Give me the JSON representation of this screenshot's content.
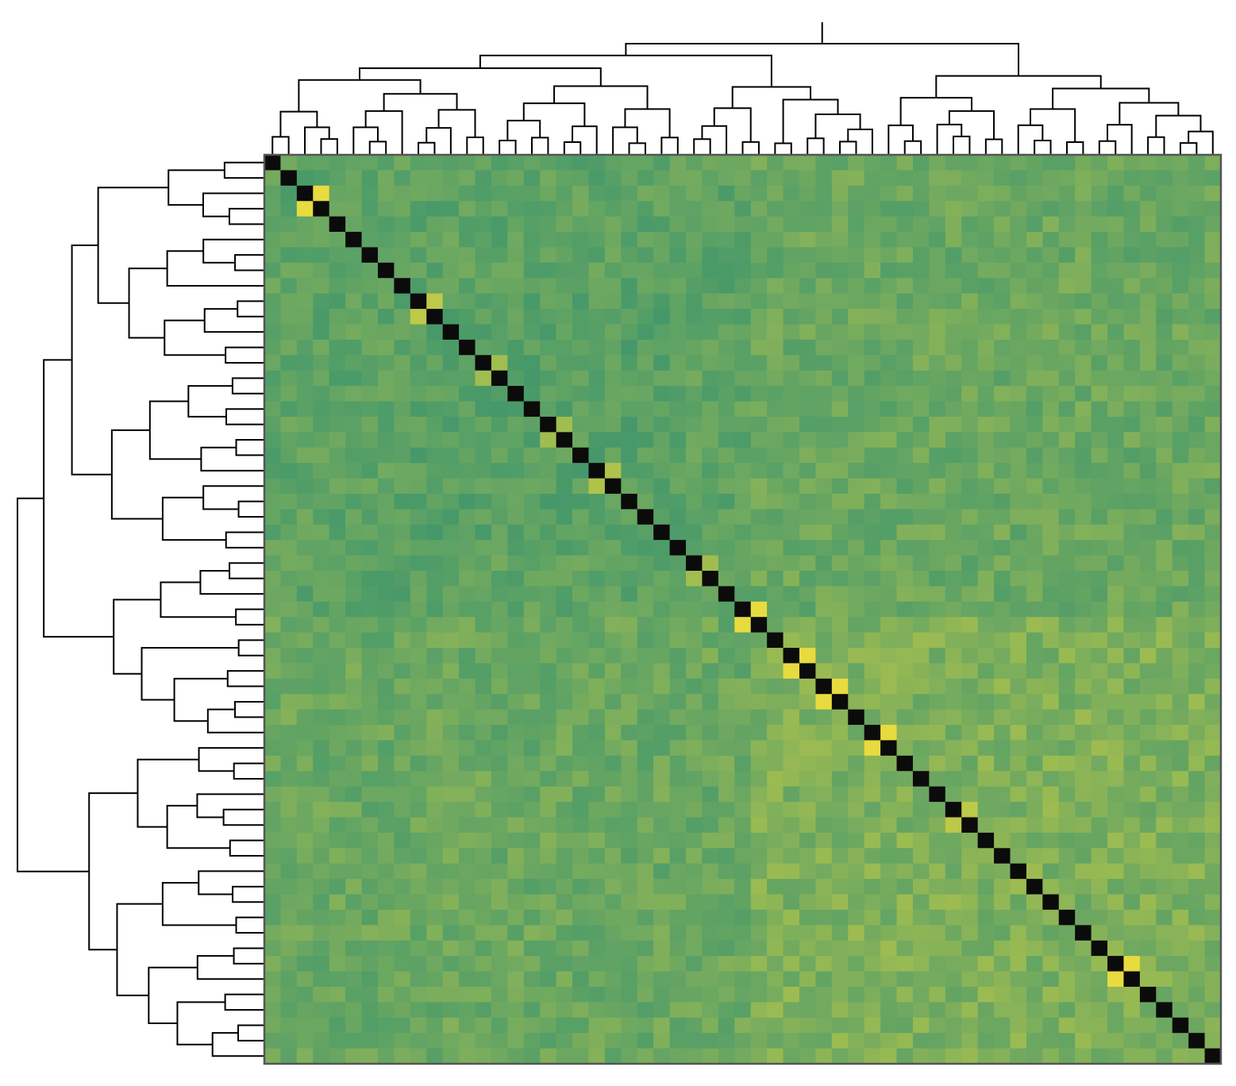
{
  "chart_data": {
    "type": "heatmap",
    "title": "",
    "xlabel": "",
    "ylabel": "",
    "n": 59,
    "colormap": "yellow-green-teal",
    "diagonal_color": "#0b0b0b",
    "frame_color": "#555555",
    "dendrogram_line_color": "#000000",
    "dendrograms": [
      "top",
      "left"
    ],
    "legend": "none",
    "grid": false,
    "value_range": [
      0,
      1
    ],
    "base_value": 0.5,
    "diagonal_value": 1.0,
    "highlighted_pairs": [
      {
        "a": 2,
        "b": 3,
        "value": 0.95
      },
      {
        "a": 9,
        "b": 10,
        "value": 0.8
      },
      {
        "a": 29,
        "b": 30,
        "value": 0.95
      },
      {
        "a": 32,
        "b": 33,
        "value": 0.95
      },
      {
        "a": 34,
        "b": 35,
        "value": 0.95
      },
      {
        "a": 37,
        "b": 38,
        "value": 0.95
      },
      {
        "a": 52,
        "b": 53,
        "value": 0.95
      },
      {
        "a": 20,
        "b": 21,
        "value": 0.75
      },
      {
        "a": 17,
        "b": 18,
        "value": 0.7
      },
      {
        "a": 26,
        "b": 27,
        "value": 0.7
      },
      {
        "a": 42,
        "b": 43,
        "value": 0.8
      },
      {
        "a": 13,
        "b": 14,
        "value": 0.7
      }
    ],
    "block_tendencies": [
      {
        "rows": [
          0,
          29
        ],
        "cols": [
          0,
          29
        ],
        "shift": -0.05
      },
      {
        "rows": [
          30,
          58
        ],
        "cols": [
          30,
          58
        ],
        "shift": 0.08
      },
      {
        "rows": [
          9,
          24
        ],
        "cols": [
          9,
          24
        ],
        "shift": -0.04
      }
    ]
  }
}
